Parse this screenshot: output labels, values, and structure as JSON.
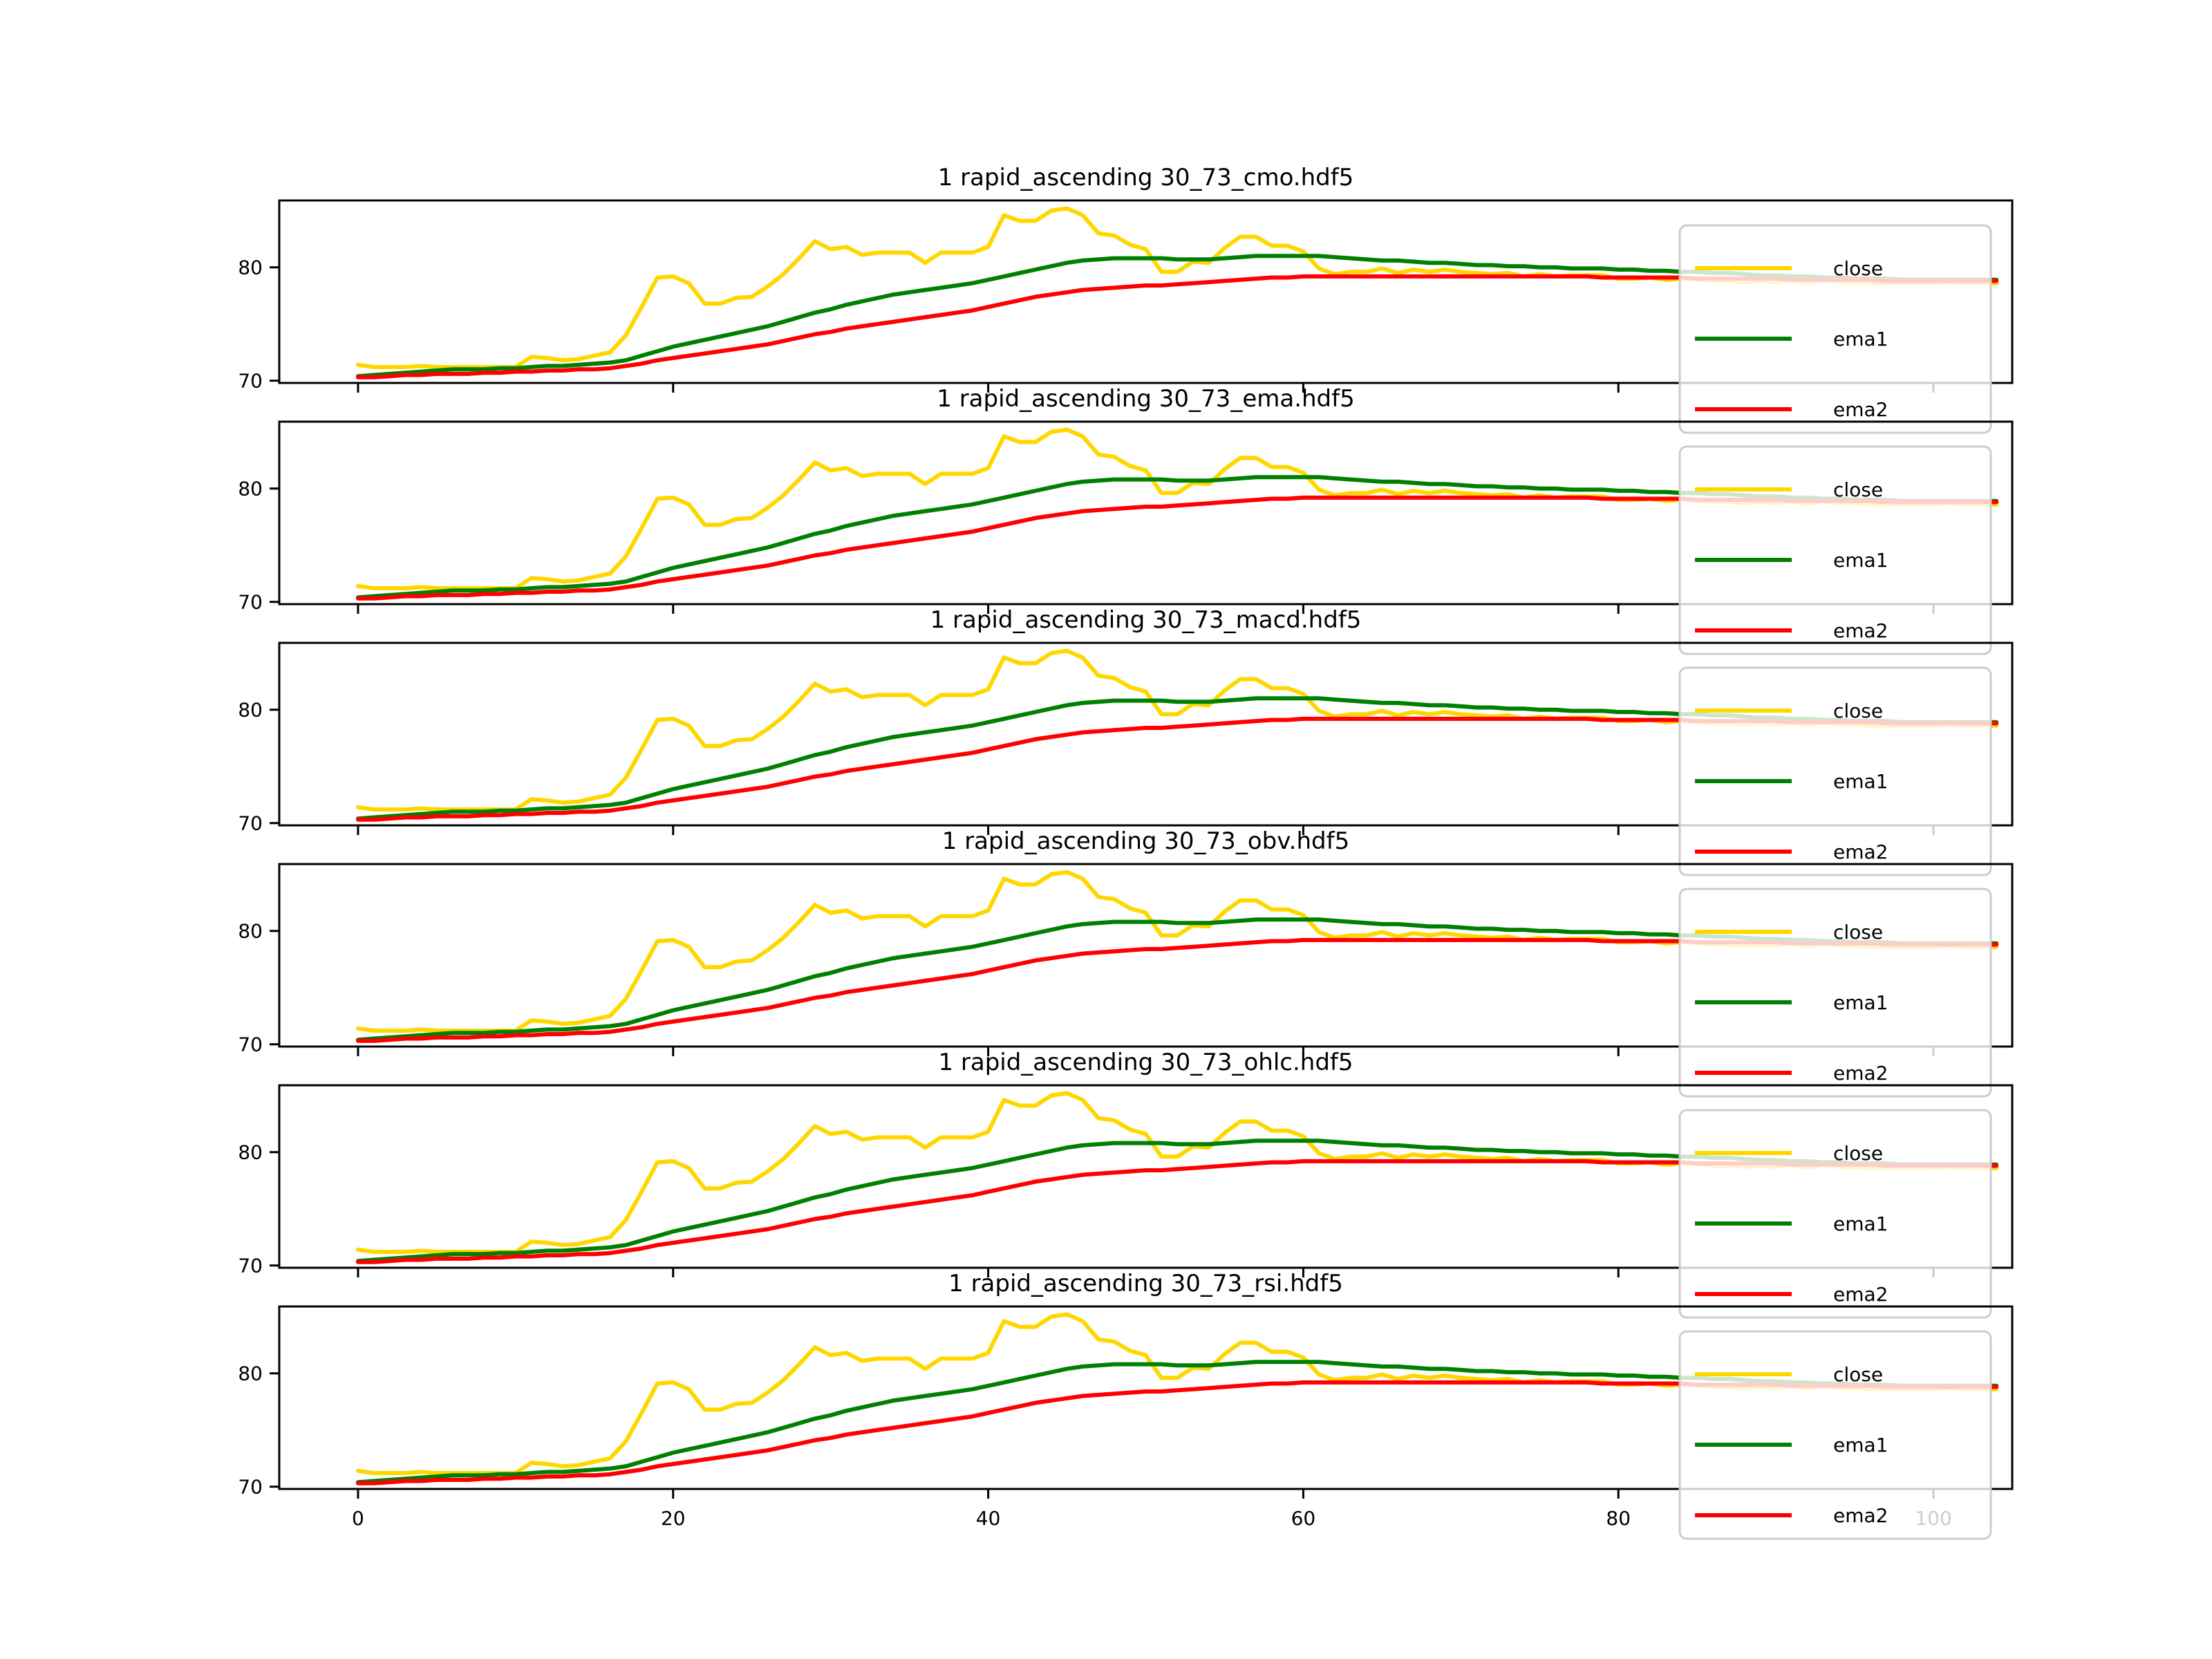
{
  "legend": {
    "placement": "lower-right",
    "entries": [
      {
        "label": "close",
        "color": "#ffd700"
      },
      {
        "label": "ema1",
        "color": "#008000"
      },
      {
        "label": "ema2",
        "color": "#ff0000"
      }
    ]
  },
  "chart_data": [
    {
      "type": "line",
      "title": "1 rapid_ascending 30_73_cmo.hdf5",
      "xlabel": "",
      "ylabel": "",
      "xlim": [
        -5,
        105
      ],
      "ylim": [
        69.8,
        85.9
      ],
      "x_ticks": [
        0,
        20,
        40,
        60,
        80,
        100
      ],
      "y_ticks": [
        70,
        80
      ],
      "grid": false,
      "series_ref": "shared"
    },
    {
      "type": "line",
      "title": "1 rapid_ascending 30_73_ema.hdf5",
      "xlabel": "",
      "ylabel": "",
      "xlim": [
        -5,
        105
      ],
      "ylim": [
        69.8,
        85.9
      ],
      "x_ticks": [
        0,
        20,
        40,
        60,
        80,
        100
      ],
      "y_ticks": [
        70,
        80
      ],
      "grid": false,
      "series_ref": "shared"
    },
    {
      "type": "line",
      "title": "1 rapid_ascending 30_73_macd.hdf5",
      "xlabel": "",
      "ylabel": "",
      "xlim": [
        -5,
        105
      ],
      "ylim": [
        69.8,
        85.9
      ],
      "x_ticks": [
        0,
        20,
        40,
        60,
        80,
        100
      ],
      "y_ticks": [
        70,
        80
      ],
      "grid": false,
      "series_ref": "shared"
    },
    {
      "type": "line",
      "title": "1 rapid_ascending 30_73_obv.hdf5",
      "xlabel": "",
      "ylabel": "",
      "xlim": [
        -5,
        105
      ],
      "ylim": [
        69.8,
        85.9
      ],
      "x_ticks": [
        0,
        20,
        40,
        60,
        80,
        100
      ],
      "y_ticks": [
        70,
        80
      ],
      "grid": false,
      "series_ref": "shared"
    },
    {
      "type": "line",
      "title": "1 rapid_ascending 30_73_ohlc.hdf5",
      "xlabel": "",
      "ylabel": "",
      "xlim": [
        -5,
        105
      ],
      "ylim": [
        69.8,
        85.9
      ],
      "x_ticks": [
        0,
        20,
        40,
        60,
        80,
        100
      ],
      "y_ticks": [
        70,
        80
      ],
      "grid": false,
      "series_ref": "shared"
    },
    {
      "type": "line",
      "title": "1 rapid_ascending 30_73_rsi.hdf5",
      "xlabel": "",
      "ylabel": "",
      "xlim": [
        -5,
        105
      ],
      "ylim": [
        69.8,
        85.9
      ],
      "x_ticks": [
        0,
        20,
        40,
        60,
        80,
        100
      ],
      "y_ticks": [
        70,
        80
      ],
      "grid": false,
      "series_ref": "shared"
    }
  ],
  "shared_series": {
    "x": [
      0,
      1,
      2,
      3,
      4,
      5,
      6,
      7,
      8,
      9,
      10,
      11,
      12,
      13,
      14,
      15,
      16,
      17,
      18,
      19,
      20,
      21,
      22,
      23,
      24,
      25,
      26,
      27,
      28,
      29,
      30,
      31,
      32,
      33,
      34,
      35,
      36,
      37,
      38,
      39,
      40,
      41,
      42,
      43,
      44,
      45,
      46,
      47,
      48,
      49,
      50,
      51,
      52,
      53,
      54,
      55,
      56,
      57,
      58,
      59,
      60,
      61,
      62,
      63,
      64,
      65,
      66,
      67,
      68,
      69,
      70,
      71,
      72,
      73,
      74,
      75,
      76,
      77,
      78,
      79,
      80,
      81,
      82,
      83,
      84,
      85,
      86,
      87,
      88,
      89,
      90,
      91,
      92,
      93,
      94,
      95,
      96,
      97,
      98,
      99,
      100,
      101,
      102,
      103,
      104
    ],
    "series": [
      {
        "name": "close",
        "color": "#ffd700",
        "values": [
          71.4,
          71.2,
          71.2,
          71.2,
          71.3,
          71.2,
          71.2,
          71.2,
          71.2,
          71.2,
          71.2,
          72.1,
          72.0,
          71.8,
          71.9,
          72.2,
          72.5,
          74.0,
          76.5,
          79.1,
          79.2,
          78.6,
          76.8,
          76.8,
          77.3,
          77.4,
          78.3,
          79.4,
          80.8,
          82.3,
          81.6,
          81.8,
          81.1,
          81.3,
          81.3,
          81.3,
          80.4,
          81.3,
          81.3,
          81.3,
          81.8,
          84.6,
          84.1,
          84.1,
          85.0,
          85.2,
          84.6,
          83.0,
          82.8,
          82.0,
          81.6,
          79.6,
          79.6,
          80.5,
          80.4,
          81.7,
          82.7,
          82.7,
          81.9,
          81.9,
          81.4,
          79.9,
          79.4,
          79.6,
          79.6,
          79.9,
          79.5,
          79.8,
          79.6,
          79.8,
          79.6,
          79.5,
          79.4,
          79.5,
          79.2,
          79.4,
          79.2,
          79.3,
          79.3,
          79.3,
          79.0,
          79.0,
          79.1,
          78.9,
          79.0,
          78.9,
          78.8,
          78.8,
          78.7,
          78.8,
          78.7,
          78.9,
          78.6,
          78.9,
          78.7,
          78.7,
          78.6,
          78.6,
          78.6,
          78.6,
          78.6,
          78.7,
          78.6,
          78.6,
          78.6
        ]
      },
      {
        "name": "ema1",
        "color": "#008000",
        "values": [
          70.4,
          70.5,
          70.6,
          70.7,
          70.8,
          70.9,
          71.0,
          71.0,
          71.0,
          71.1,
          71.1,
          71.2,
          71.3,
          71.3,
          71.4,
          71.5,
          71.6,
          71.8,
          72.2,
          72.6,
          73.0,
          73.3,
          73.6,
          73.9,
          74.2,
          74.5,
          74.8,
          75.2,
          75.6,
          76.0,
          76.3,
          76.7,
          77.0,
          77.3,
          77.6,
          77.8,
          78.0,
          78.2,
          78.4,
          78.6,
          78.9,
          79.2,
          79.5,
          79.8,
          80.1,
          80.4,
          80.6,
          80.7,
          80.8,
          80.8,
          80.8,
          80.8,
          80.7,
          80.7,
          80.7,
          80.8,
          80.9,
          81.0,
          81.0,
          81.0,
          81.0,
          81.0,
          80.9,
          80.8,
          80.7,
          80.6,
          80.6,
          80.5,
          80.4,
          80.4,
          80.3,
          80.2,
          80.2,
          80.1,
          80.1,
          80.0,
          80.0,
          79.9,
          79.9,
          79.9,
          79.8,
          79.8,
          79.7,
          79.7,
          79.6,
          79.6,
          79.5,
          79.5,
          79.4,
          79.3,
          79.3,
          79.2,
          79.2,
          79.1,
          79.1,
          79.0,
          79.0,
          79.0,
          78.9,
          78.9,
          78.9,
          78.9,
          78.9,
          78.9,
          78.9
        ]
      },
      {
        "name": "ema2",
        "color": "#ff0000",
        "values": [
          70.3,
          70.3,
          70.4,
          70.5,
          70.5,
          70.6,
          70.6,
          70.6,
          70.7,
          70.7,
          70.8,
          70.8,
          70.9,
          70.9,
          71.0,
          71.0,
          71.1,
          71.3,
          71.5,
          71.8,
          72.0,
          72.2,
          72.4,
          72.6,
          72.8,
          73.0,
          73.2,
          73.5,
          73.8,
          74.1,
          74.3,
          74.6,
          74.8,
          75.0,
          75.2,
          75.4,
          75.6,
          75.8,
          76.0,
          76.2,
          76.5,
          76.8,
          77.1,
          77.4,
          77.6,
          77.8,
          78.0,
          78.1,
          78.2,
          78.3,
          78.4,
          78.4,
          78.5,
          78.6,
          78.7,
          78.8,
          78.9,
          79.0,
          79.1,
          79.1,
          79.2,
          79.2,
          79.2,
          79.2,
          79.2,
          79.2,
          79.2,
          79.2,
          79.2,
          79.2,
          79.2,
          79.2,
          79.2,
          79.2,
          79.2,
          79.2,
          79.2,
          79.2,
          79.2,
          79.1,
          79.1,
          79.1,
          79.1,
          79.1,
          79.1,
          79.0,
          79.0,
          79.0,
          79.0,
          79.0,
          79.0,
          78.9,
          78.9,
          78.9,
          78.9,
          78.9,
          78.9,
          78.8,
          78.8,
          78.8,
          78.8,
          78.8,
          78.8,
          78.8,
          78.8
        ]
      }
    ]
  }
}
